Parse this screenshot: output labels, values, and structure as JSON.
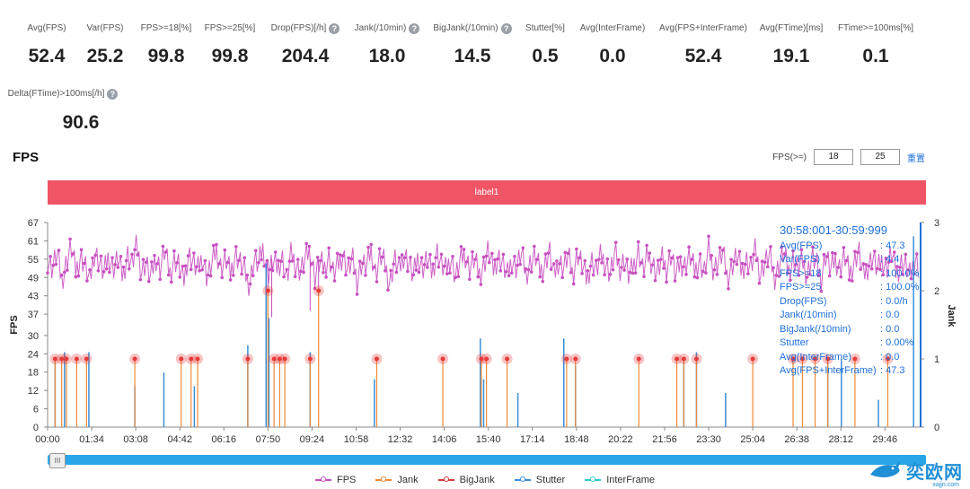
{
  "stats": [
    {
      "label": "Avg(FPS)",
      "value": "52.4",
      "help": false
    },
    {
      "label": "Var(FPS)",
      "value": "25.2",
      "help": false
    },
    {
      "label": "FPS>=18[%]",
      "value": "99.8",
      "help": false
    },
    {
      "label": "FPS>=25[%]",
      "value": "99.8",
      "help": false
    },
    {
      "label": "Drop(FPS)[/h]",
      "value": "204.4",
      "help": true
    },
    {
      "label": "Jank(/10min)",
      "value": "18.0",
      "help": true
    },
    {
      "label": "BigJank(/10min)",
      "value": "14.5",
      "help": true
    },
    {
      "label": "Stutter[%]",
      "value": "0.5",
      "help": false
    },
    {
      "label": "Avg(InterFrame)",
      "value": "0.0",
      "help": false
    },
    {
      "label": "Avg(FPS+InterFrame)",
      "value": "52.4",
      "help": false
    },
    {
      "label": "Avg(FTime)[ms]",
      "value": "19.1",
      "help": false
    },
    {
      "label": "FTime>=100ms[%]",
      "value": "0.1",
      "help": false
    },
    {
      "label": "Delta(FTime)>100ms[/h]",
      "value": "90.6",
      "help": true
    }
  ],
  "help_glyph": "?",
  "chart_section": {
    "title": "FPS",
    "threshold_label": "FPS(>=)",
    "threshold1": "18",
    "threshold2": "25",
    "reset_label": "重置",
    "label_bar": "label1",
    "slider_handle": "III"
  },
  "tooltip": {
    "time": "30:58:001-30:59:999",
    "rows": [
      {
        "k": "Avg(FPS)",
        "v": ": 47.3"
      },
      {
        "k": "Var(FPS)",
        "v": ": 4.4"
      },
      {
        "k": "FPS>=18",
        "v": ": 100.0%"
      },
      {
        "k": "FPS>=25",
        "v": ": 100.0%"
      },
      {
        "k": "Drop(FPS)",
        "v": ": 0.0/h"
      },
      {
        "k": "Jank(/10min)",
        "v": ": 0.0"
      },
      {
        "k": "BigJank(/10min)",
        "v": ": 0.0"
      },
      {
        "k": "Stutter",
        "v": ": 0.00%"
      },
      {
        "k": "Avg(InterFrame)",
        "v": ": 0.0"
      },
      {
        "k": "Avg(FPS+InterFrame)",
        "v": ": 47.3"
      }
    ]
  },
  "watermark": {
    "text": "奕欧网",
    "sub": "xajjn.com"
  },
  "colors": {
    "fps": "#c850c0",
    "jank": "#f08a35",
    "bigjank": "#d63a3a",
    "stutter": "#3a8fd8",
    "interframe": "#2fc8d0",
    "label_bar": "#ef5565",
    "jank_marker": "#e83a3a"
  },
  "chart_data": {
    "type": "line",
    "xlabel": "",
    "ylabel": "FPS",
    "y2label": "Jank",
    "ylim": [
      0,
      67
    ],
    "yticks": [
      0,
      6,
      12,
      18,
      24,
      30,
      37,
      43,
      49,
      55,
      61,
      67
    ],
    "y2lim": [
      0,
      3
    ],
    "y2ticks": [
      0,
      1,
      2,
      3
    ],
    "xlim": [
      0,
      1862
    ],
    "xticks": [
      "00:00",
      "01:34",
      "03:08",
      "04:42",
      "06:16",
      "07:50",
      "09:24",
      "10:58",
      "12:32",
      "14:06",
      "15:40",
      "17:14",
      "18:48",
      "20:22",
      "21:56",
      "23:30",
      "25:04",
      "26:38",
      "28:12",
      "29:46"
    ],
    "legend": [
      "FPS",
      "Jank",
      "BigJank",
      "Stutter",
      "InterFrame"
    ],
    "legend_position": "bottom",
    "fps_series": {
      "name": "FPS",
      "x_step_seconds": 10,
      "values": [
        55,
        52,
        57,
        48,
        54,
        59,
        51,
        56,
        53,
        47,
        58,
        54,
        50,
        56,
        52,
        55,
        49,
        57,
        53,
        60,
        51,
        54,
        48,
        56,
        52,
        58,
        50,
        55,
        53,
        47,
        57,
        54,
        51,
        56,
        49,
        53,
        58,
        52,
        55,
        50,
        57,
        54,
        51,
        46,
        55,
        53,
        59,
        50,
        54,
        52,
        56,
        48,
        57,
        53,
        51,
        55,
        58,
        49,
        54,
        52,
        56,
        50,
        53,
        57,
        51,
        55,
        48,
        54,
        52,
        58,
        50,
        56,
        53,
        47,
        55,
        51,
        57,
        54,
        49,
        56,
        52,
        55,
        50,
        58,
        53,
        51,
        56,
        49,
        54,
        57,
        52,
        55,
        50,
        53,
        58,
        51,
        56,
        54,
        49,
        55,
        52,
        57,
        50,
        54,
        56,
        51,
        53,
        58,
        49,
        55,
        52,
        56,
        50,
        57,
        53,
        48,
        55,
        51,
        56,
        54,
        50,
        57,
        52,
        55,
        49,
        53,
        58,
        51,
        56,
        54,
        50,
        55,
        52,
        57,
        49,
        54,
        53,
        56,
        51,
        55,
        50,
        58,
        52,
        54,
        57,
        49,
        53,
        56,
        51,
        55,
        52,
        58,
        50,
        54,
        56,
        49,
        53,
        57,
        51,
        55,
        52,
        54,
        50,
        56,
        53,
        49,
        57,
        51,
        55,
        52,
        56,
        50,
        54,
        58,
        49,
        53,
        56,
        51,
        55,
        52,
        57,
        50,
        54,
        53,
        49,
        56,
        51,
        55,
        52
      ]
    },
    "jank": [
      {
        "t": 16,
        "v": 1
      },
      {
        "t": 30,
        "v": 1
      },
      {
        "t": 40,
        "v": 1
      },
      {
        "t": 62,
        "v": 1
      },
      {
        "t": 83,
        "v": 1
      },
      {
        "t": 186,
        "v": 1
      },
      {
        "t": 285,
        "v": 1
      },
      {
        "t": 306,
        "v": 1
      },
      {
        "t": 320,
        "v": 1
      },
      {
        "t": 427,
        "v": 1
      },
      {
        "t": 470,
        "v": 2
      },
      {
        "t": 483,
        "v": 1
      },
      {
        "t": 495,
        "v": 1
      },
      {
        "t": 506,
        "v": 1
      },
      {
        "t": 560,
        "v": 1
      },
      {
        "t": 578,
        "v": 2
      },
      {
        "t": 702,
        "v": 1
      },
      {
        "t": 843,
        "v": 1
      },
      {
        "t": 925,
        "v": 1
      },
      {
        "t": 936,
        "v": 1
      },
      {
        "t": 980,
        "v": 1
      },
      {
        "t": 1107,
        "v": 1
      },
      {
        "t": 1126,
        "v": 1
      },
      {
        "t": 1261,
        "v": 1
      },
      {
        "t": 1342,
        "v": 1
      },
      {
        "t": 1357,
        "v": 1
      },
      {
        "t": 1384,
        "v": 1
      },
      {
        "t": 1504,
        "v": 1
      },
      {
        "t": 1590,
        "v": 1
      },
      {
        "t": 1610,
        "v": 1
      },
      {
        "t": 1637,
        "v": 1
      },
      {
        "t": 1664,
        "v": 1
      },
      {
        "t": 1722,
        "v": 1
      },
      {
        "t": 1792,
        "v": 1
      }
    ],
    "stutter": [
      {
        "t": 16,
        "v": 1
      },
      {
        "t": 36,
        "v": 1.1
      },
      {
        "t": 88,
        "v": 1.1
      },
      {
        "t": 186,
        "v": 0.6
      },
      {
        "t": 248,
        "v": 0.8
      },
      {
        "t": 313,
        "v": 0.6
      },
      {
        "t": 427,
        "v": 1.2
      },
      {
        "t": 466,
        "v": 2.4
      },
      {
        "t": 472,
        "v": 1.6
      },
      {
        "t": 560,
        "v": 1.1
      },
      {
        "t": 697,
        "v": 0.7
      },
      {
        "t": 923,
        "v": 1.3
      },
      {
        "t": 930,
        "v": 0.7
      },
      {
        "t": 1003,
        "v": 0.5
      },
      {
        "t": 1101,
        "v": 1.3
      },
      {
        "t": 1126,
        "v": 0.9
      },
      {
        "t": 1357,
        "v": 1.0
      },
      {
        "t": 1384,
        "v": 1.1
      },
      {
        "t": 1446,
        "v": 0.5
      },
      {
        "t": 1664,
        "v": 1.0
      },
      {
        "t": 1693,
        "v": 1.0
      },
      {
        "t": 1772,
        "v": 0.4
      },
      {
        "t": 1847,
        "v": 2.8
      }
    ]
  }
}
